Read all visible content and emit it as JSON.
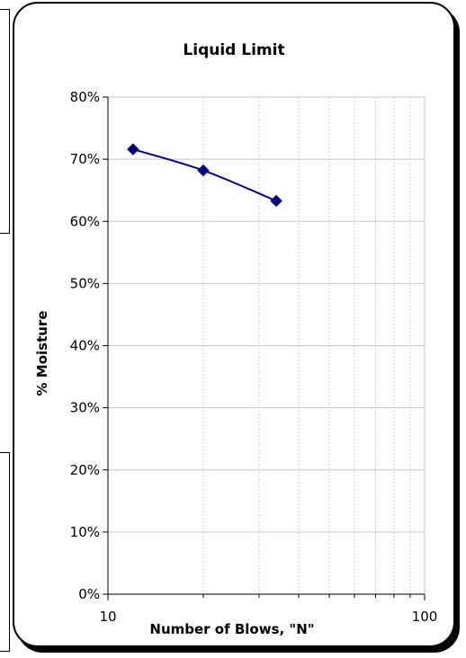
{
  "chart_data": {
    "type": "scatter",
    "title": "Liquid Limit",
    "xlabel": "Number of Blows, \"N\"",
    "ylabel": "% Moisture",
    "x_scale": "log",
    "xlim": [
      10,
      100
    ],
    "ylim": [
      0,
      0.8
    ],
    "x_ticks": [
      {
        "value": 10,
        "label": "10"
      },
      {
        "value": 100,
        "label": "100"
      }
    ],
    "y_ticks": [
      {
        "value": 0.0,
        "label": "0%"
      },
      {
        "value": 0.1,
        "label": "10%"
      },
      {
        "value": 0.2,
        "label": "20%"
      },
      {
        "value": 0.3,
        "label": "30%"
      },
      {
        "value": 0.4,
        "label": "40%"
      },
      {
        "value": 0.5,
        "label": "50%"
      },
      {
        "value": 0.6,
        "label": "60%"
      },
      {
        "value": 0.7,
        "label": "70%"
      },
      {
        "value": 0.8,
        "label": "80%"
      }
    ],
    "grid": true,
    "legend": "none",
    "series": [
      {
        "marker": "diamond",
        "color": "#000080",
        "smooth_line": true,
        "points": [
          {
            "x": 12,
            "y": 0.716
          },
          {
            "x": 20,
            "y": 0.682
          },
          {
            "x": 34,
            "y": 0.633
          }
        ]
      }
    ]
  }
}
